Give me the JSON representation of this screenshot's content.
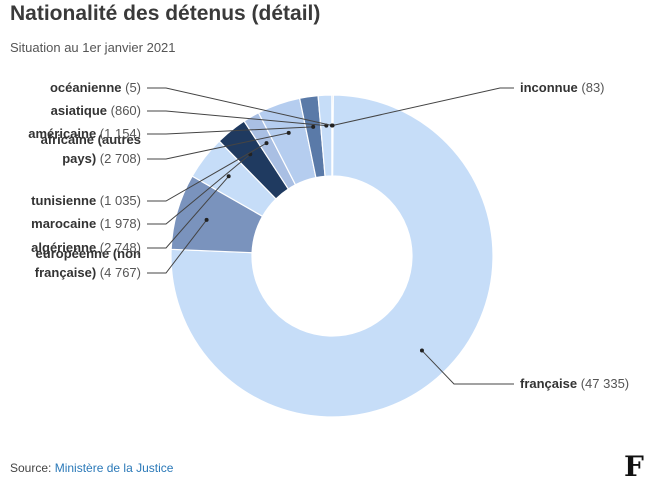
{
  "header": {
    "title": "Nationalité des détenus (détail)",
    "subtitle": "Situation au 1er janvier 2021"
  },
  "footer": {
    "source_prefix": "Source: ",
    "source_name": "Ministère de la Justice"
  },
  "logo": {
    "text": "F",
    "icon": "le-figaro-logo"
  },
  "chart_data": {
    "type": "pie",
    "donut": true,
    "title": "Nationalité des détenus (détail)",
    "subtitle": "Situation au 1er janvier 2021",
    "slices": [
      {
        "name": "inconnue",
        "value": 83,
        "value_label": "(83)",
        "color": "#1c3557"
      },
      {
        "name": "française",
        "value": 47335,
        "value_label": "(47 335)",
        "color": "#c6ddf8"
      },
      {
        "name": "européenne (non française)",
        "name_lines": [
          "européenne (non",
          "française)"
        ],
        "value": 4767,
        "value_label": "(4 767)",
        "color": "#7a93bd"
      },
      {
        "name": "algérienne",
        "value": 2748,
        "value_label": "(2 748)",
        "color": "#c6ddf8"
      },
      {
        "name": "marocaine",
        "value": 1978,
        "value_label": "(1 978)",
        "color": "#1f3a60"
      },
      {
        "name": "tunisienne",
        "value": 1035,
        "value_label": "(1 035)",
        "color": "#a9bfe3"
      },
      {
        "name": "africaine (autres pays)",
        "name_lines": [
          "africaine (autres",
          "pays)"
        ],
        "value": 2708,
        "value_label": "(2 708)",
        "color": "#b5cdef"
      },
      {
        "name": "américaine",
        "value": 1154,
        "value_label": "(1 154)",
        "color": "#5a7aa8"
      },
      {
        "name": "asiatique",
        "value": 860,
        "value_label": "(860)",
        "color": "#c6ddf8"
      },
      {
        "name": "océanienne",
        "value": 5,
        "value_label": "(5)",
        "color": "#6f8bb5"
      }
    ]
  }
}
